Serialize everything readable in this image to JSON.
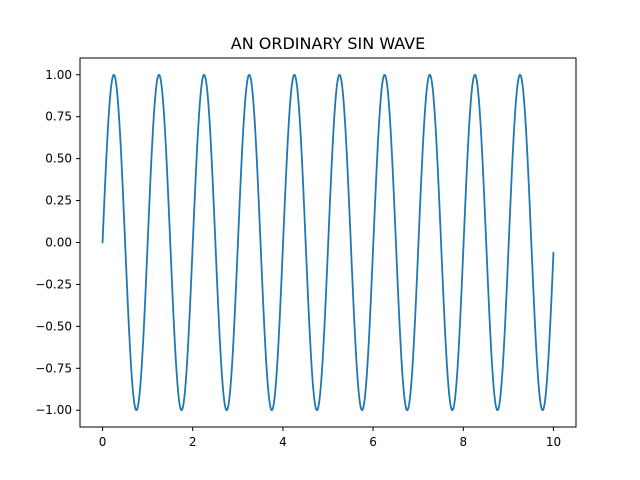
{
  "chart_data": {
    "type": "line",
    "title": "AN ORDINARY SIN WAVE",
    "xlabel": "",
    "ylabel": "",
    "xlim": [
      -0.5,
      10.5
    ],
    "ylim": [
      -1.1,
      1.1
    ],
    "x_ticks": [
      0,
      2,
      4,
      6,
      8,
      10
    ],
    "x_tick_labels": [
      "0",
      "2",
      "4",
      "6",
      "8",
      "10"
    ],
    "y_ticks": [
      -1.0,
      -0.75,
      -0.5,
      -0.25,
      0.0,
      0.25,
      0.5,
      0.75,
      1.0
    ],
    "y_tick_labels": [
      "−1.00",
      "−0.75",
      "−0.50",
      "−0.25",
      "0.00",
      "0.25",
      "0.50",
      "0.75",
      "1.00"
    ],
    "grid": false,
    "series": [
      {
        "color": "#1f77b4",
        "x": [
          0,
          0.25,
          0.5,
          0.75,
          1,
          1.25,
          1.5,
          1.75,
          2,
          2.25,
          2.5,
          2.75,
          3,
          3.25,
          3.5,
          3.75,
          4,
          4.25,
          4.5,
          4.75,
          5,
          5.25,
          5.5,
          5.75,
          6,
          6.25,
          6.5,
          6.75,
          7,
          7.25,
          7.5,
          7.75,
          8,
          8.25,
          8.5,
          8.75,
          9,
          9.25,
          9.5,
          9.75,
          10
        ],
        "y": [
          0,
          1,
          0,
          -1,
          0,
          1,
          0,
          -1,
          0,
          1,
          0,
          -1,
          0,
          1,
          0,
          -1,
          0,
          1,
          0,
          -1,
          0,
          1,
          0,
          -1,
          0,
          1,
          0,
          -1,
          0,
          1,
          0,
          -1,
          0,
          1,
          0,
          -1,
          0,
          1,
          0,
          -1,
          -0.06
        ]
      }
    ]
  }
}
